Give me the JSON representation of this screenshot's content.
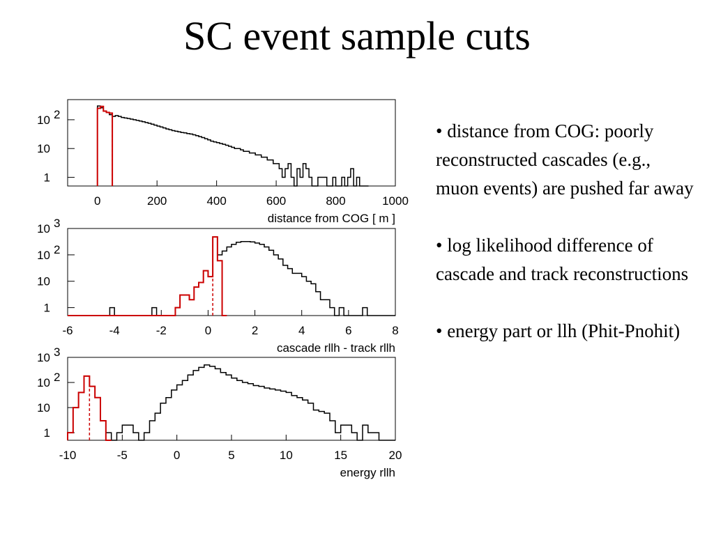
{
  "slide": {
    "title": "SC event sample cuts",
    "bullets": [
      "• distance from COG: poorly reconstructed cascades (e.g., muon events) are pushed far away",
      "• log likelihood difference of cascade and track reconstructions",
      "• energy part or llh (Phit-Pnohit)"
    ]
  },
  "chart_data": [
    {
      "type": "histogram",
      "xlabel": "distance from COG [ m ]",
      "ylabel": "",
      "xlim": [
        -100,
        1000
      ],
      "ylim": [
        0.5,
        500
      ],
      "y_log": true,
      "xticks": [
        0,
        200,
        400,
        600,
        800,
        1000
      ],
      "yticks": [
        {
          "value": 1,
          "label": "1"
        },
        {
          "value": 10,
          "label": "10"
        },
        {
          "value": 100,
          "label": "10 2"
        }
      ],
      "cut_line": 50,
      "series": [
        {
          "style": "black-solid",
          "bin_width": 10,
          "x_start": 0,
          "counts": [
            300,
            260,
            200,
            180,
            150,
            130,
            140,
            130,
            120,
            115,
            110,
            105,
            100,
            95,
            90,
            85,
            80,
            75,
            70,
            65,
            60,
            56,
            52,
            48,
            45,
            42,
            40,
            38,
            36,
            35,
            33,
            32,
            30,
            28,
            26,
            24,
            22,
            20,
            18,
            17,
            16,
            15,
            14,
            13,
            12,
            11,
            10,
            10,
            9,
            8,
            8,
            7,
            7,
            6,
            6,
            5,
            5,
            4,
            4,
            3,
            3,
            2,
            1,
            2,
            3,
            1,
            0,
            2,
            1,
            3,
            2,
            1,
            0,
            0,
            1,
            1,
            1,
            0,
            0,
            1,
            0,
            0,
            1,
            0,
            1,
            2,
            0,
            1,
            0,
            0,
            0
          ]
        },
        {
          "style": "red-dashed",
          "bin_width": 10,
          "x_start": 0,
          "counts": [
            250,
            290,
            200,
            180,
            170
          ]
        }
      ]
    },
    {
      "type": "histogram",
      "xlabel": "cascade rllh - track rllh",
      "ylabel": "",
      "xlim": [
        -6,
        8
      ],
      "ylim": [
        0.5,
        1000
      ],
      "y_log": true,
      "xticks": [
        -6,
        -4,
        -2,
        0,
        2,
        4,
        6,
        8
      ],
      "yticks": [
        {
          "value": 1,
          "label": "1"
        },
        {
          "value": 10,
          "label": "10"
        },
        {
          "value": 100,
          "label": "10 2"
        },
        {
          "value": 1000,
          "label": "10 3"
        }
      ],
      "cut_line": 0.2,
      "series": [
        {
          "style": "black-solid",
          "bin_width": 0.2,
          "x_start": -6,
          "counts": [
            0,
            0,
            0,
            0,
            0,
            0,
            0,
            0,
            0,
            1,
            0,
            0,
            0,
            0,
            0,
            0,
            0,
            0,
            1,
            0,
            0,
            0,
            0,
            1,
            3,
            3,
            2,
            6,
            9,
            25,
            15,
            480,
            100,
            140,
            200,
            250,
            300,
            320,
            320,
            310,
            280,
            250,
            200,
            150,
            100,
            70,
            40,
            30,
            20,
            20,
            15,
            10,
            8,
            4,
            2,
            2,
            1,
            0,
            1,
            0,
            0,
            0,
            0,
            1,
            0,
            0,
            0,
            0,
            0,
            0
          ]
        },
        {
          "style": "red-dashed",
          "bin_width": 0.2,
          "x_start": -6,
          "counts": [
            0,
            0,
            0,
            0,
            0,
            0,
            0,
            0,
            0,
            0,
            0,
            0,
            0,
            0,
            0,
            0,
            0,
            0,
            0,
            0,
            0,
            0,
            0,
            1,
            3,
            3,
            2,
            6,
            9,
            25,
            15,
            480,
            60,
            0
          ]
        }
      ]
    },
    {
      "type": "histogram",
      "xlabel": "energy rllh",
      "ylabel": "",
      "xlim": [
        -10,
        20
      ],
      "ylim": [
        0.5,
        1000
      ],
      "y_log": true,
      "xticks": [
        -10,
        -5,
        0,
        5,
        10,
        15,
        20
      ],
      "yticks": [
        {
          "value": 1,
          "label": "1"
        },
        {
          "value": 10,
          "label": "10"
        },
        {
          "value": 100,
          "label": "10 2"
        },
        {
          "value": 1000,
          "label": "10 3"
        }
      ],
      "cut_line": -8,
      "series": [
        {
          "style": "black-solid",
          "bin_width": 0.5,
          "x_start": -10,
          "counts": [
            1,
            10,
            40,
            180,
            70,
            25,
            3,
            1,
            0,
            1,
            2,
            2,
            1,
            0,
            1,
            3,
            6,
            15,
            25,
            50,
            80,
            120,
            200,
            300,
            400,
            500,
            440,
            350,
            250,
            200,
            150,
            120,
            100,
            90,
            75,
            70,
            60,
            55,
            50,
            45,
            40,
            30,
            25,
            20,
            15,
            8,
            7,
            6,
            3,
            1,
            2,
            2,
            1,
            0,
            2,
            1,
            1,
            0,
            0,
            0
          ]
        },
        {
          "style": "red-dashed",
          "bin_width": 0.5,
          "x_start": -10,
          "counts": [
            1,
            10,
            40,
            180,
            70,
            25,
            3,
            0
          ]
        }
      ]
    }
  ]
}
